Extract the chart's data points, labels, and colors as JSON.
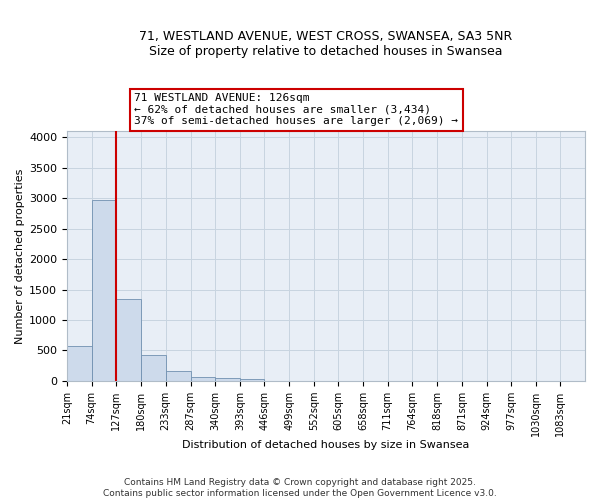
{
  "title_line1": "71, WESTLAND AVENUE, WEST CROSS, SWANSEA, SA3 5NR",
  "title_line2": "Size of property relative to detached houses in Swansea",
  "xlabel": "Distribution of detached houses by size in Swansea",
  "ylabel": "Number of detached properties",
  "bar_labels": [
    "21sqm",
    "74sqm",
    "127sqm",
    "180sqm",
    "233sqm",
    "287sqm",
    "340sqm",
    "393sqm",
    "446sqm",
    "499sqm",
    "552sqm",
    "605sqm",
    "658sqm",
    "711sqm",
    "764sqm",
    "818sqm",
    "871sqm",
    "924sqm",
    "977sqm",
    "1030sqm",
    "1083sqm"
  ],
  "bar_values": [
    570,
    2970,
    1340,
    430,
    155,
    70,
    45,
    35,
    0,
    0,
    0,
    0,
    0,
    0,
    0,
    0,
    0,
    0,
    0,
    0,
    0
  ],
  "bar_color": "#cddaeb",
  "bar_edge_color": "#7090b0",
  "grid_color": "#c8d4e0",
  "background_color": "#e8eef6",
  "annotation_box_text": "71 WESTLAND AVENUE: 126sqm\n← 62% of detached houses are smaller (3,434)\n37% of semi-detached houses are larger (2,069) →",
  "redline_x": 127,
  "ylim": [
    0,
    4100
  ],
  "yticks": [
    0,
    500,
    1000,
    1500,
    2000,
    2500,
    3000,
    3500,
    4000
  ],
  "footer_line1": "Contains HM Land Registry data © Crown copyright and database right 2025.",
  "footer_line2": "Contains public sector information licensed under the Open Government Licence v3.0."
}
